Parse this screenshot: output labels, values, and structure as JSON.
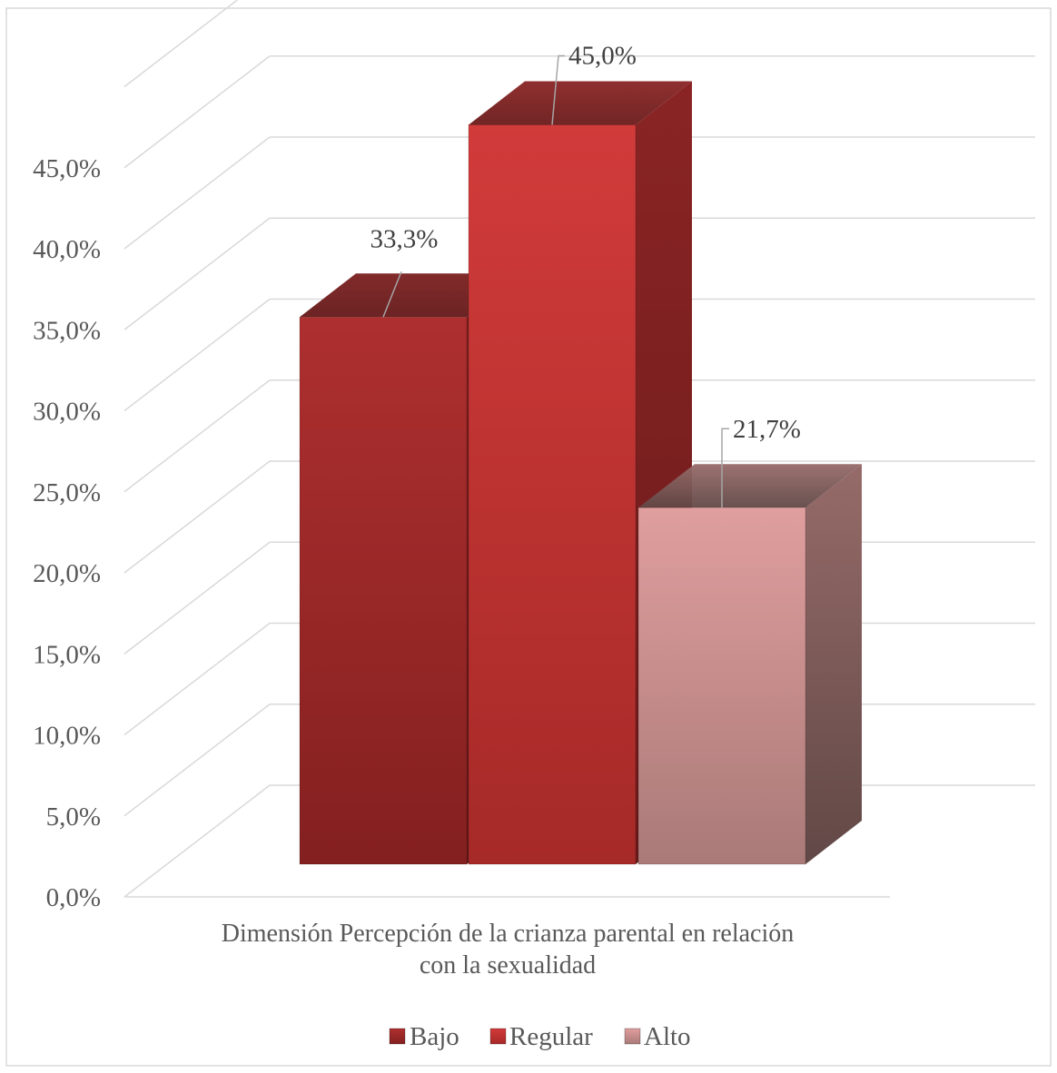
{
  "chart_data": {
    "type": "bar",
    "categories": [
      "Dimensión Percepción de la crianza parental en relación con la sexualidad"
    ],
    "category_label_lines": [
      "Dimensión Percepción de la crianza parental en relación",
      "con la sexualidad"
    ],
    "series": [
      {
        "name": "Bajo",
        "values": [
          33.3
        ],
        "label": "33,3%",
        "color": "#a52a2a"
      },
      {
        "name": "Regular",
        "values": [
          45.0
        ],
        "label": "45,0%",
        "color": "#c83232"
      },
      {
        "name": "Alto",
        "values": [
          21.7
        ],
        "label": "21,7%",
        "color": "#d69a9a"
      }
    ],
    "ylim": [
      0,
      50
    ],
    "yticks": [
      {
        "value": 0,
        "label": "0,0%"
      },
      {
        "value": 5,
        "label": "5,0%"
      },
      {
        "value": 10,
        "label": "10,0%"
      },
      {
        "value": 15,
        "label": "15,0%"
      },
      {
        "value": 20,
        "label": "20,0%"
      },
      {
        "value": 25,
        "label": "25,0%"
      },
      {
        "value": 30,
        "label": "30,0%"
      },
      {
        "value": 35,
        "label": "35,0%"
      },
      {
        "value": 40,
        "label": "40,0%"
      },
      {
        "value": 45,
        "label": "45,0%"
      }
    ],
    "grid": true,
    "legend_position": "bottom",
    "three_d": true
  }
}
